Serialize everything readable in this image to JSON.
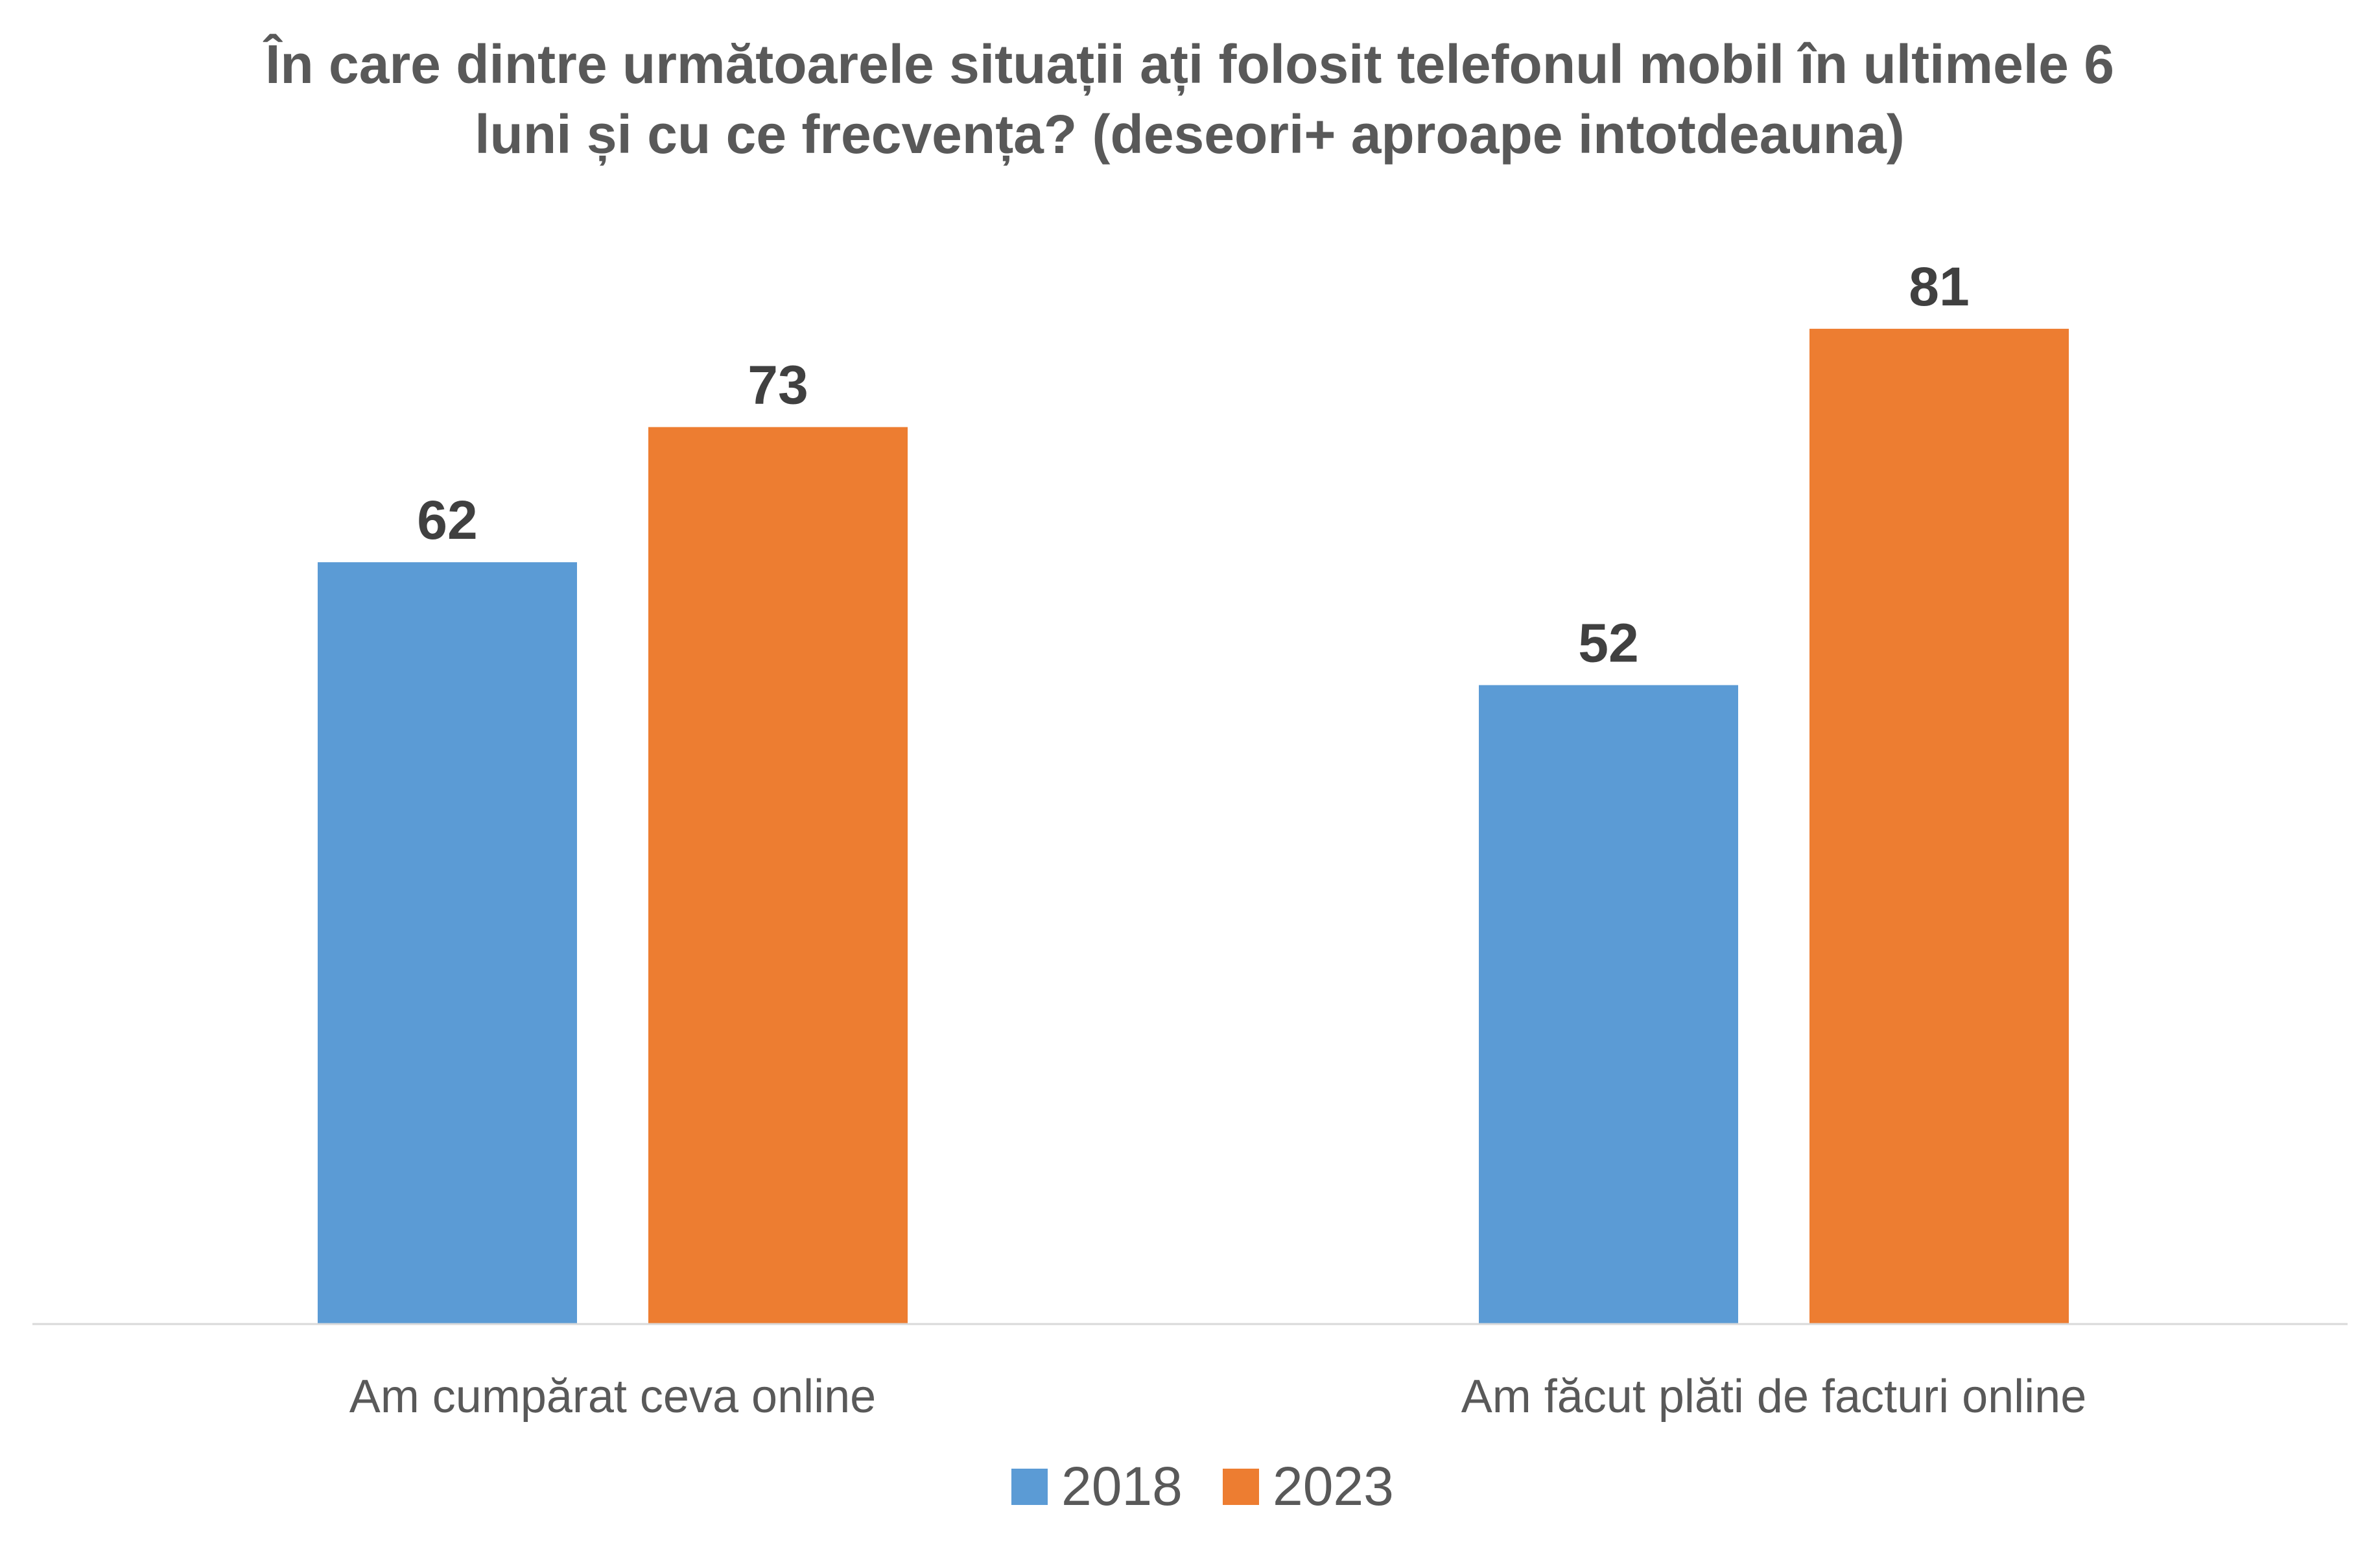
{
  "chart_data": {
    "type": "bar",
    "title_lines": [
      "În care dintre următoarele situații ați folosit telefonul mobil în ultimele 6",
      "luni și cu ce frecvența? (deseori+ aproape intotdeauna)"
    ],
    "categories": [
      "Am cumpărat ceva online",
      "Am făcut plăti de facturi online"
    ],
    "series": [
      {
        "name": "2018",
        "color": "#5B9BD5",
        "values": [
          62,
          52
        ]
      },
      {
        "name": "2023",
        "color": "#ED7D31",
        "values": [
          73,
          81
        ]
      }
    ],
    "ylim": [
      0,
      100
    ],
    "grid": false,
    "data_labels": true,
    "legend_position": "bottom",
    "axis_color": "#D9D9D9"
  }
}
